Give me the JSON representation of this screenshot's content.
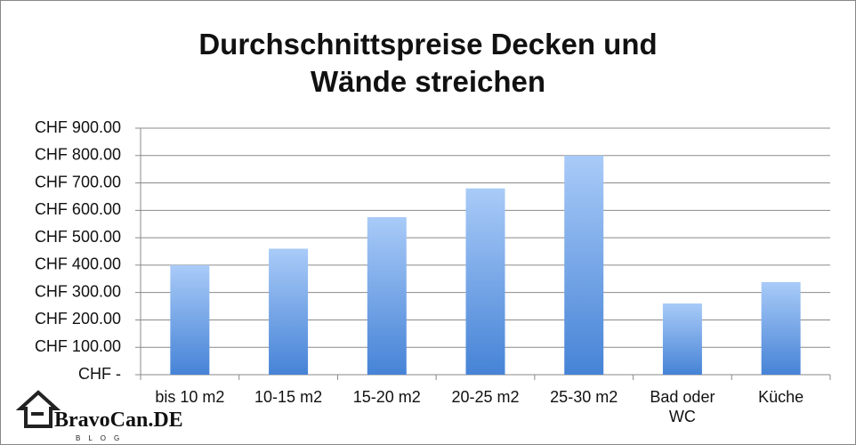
{
  "chart_data": {
    "type": "bar",
    "title": "Durchschnittspreise Decken und Wände streichen",
    "categories": [
      "bis 10 m2",
      "10-15 m2",
      "15-20 m2",
      "20-25 m2",
      "25-30 m2",
      "Bad oder WC",
      "Küche"
    ],
    "values": [
      400,
      460,
      575,
      680,
      800,
      260,
      338
    ],
    "color": "#6a9ee8",
    "ylim": [
      0,
      900
    ],
    "yticks": [
      {
        "value": 0,
        "label": "CHF -"
      },
      {
        "value": 100,
        "label": "CHF 100.00"
      },
      {
        "value": 200,
        "label": "CHF 200.00"
      },
      {
        "value": 300,
        "label": "CHF 300.00"
      },
      {
        "value": 400,
        "label": "CHF 400.00"
      },
      {
        "value": 500,
        "label": "CHF 500.00"
      },
      {
        "value": 600,
        "label": "CHF 600.00"
      },
      {
        "value": 700,
        "label": "CHF 700.00"
      },
      {
        "value": 800,
        "label": "CHF 800.00"
      },
      {
        "value": 900,
        "label": "CHF 900.00"
      }
    ],
    "grid": true
  },
  "watermark": {
    "name": "BravoCan.DE",
    "tag": "BLOG"
  }
}
